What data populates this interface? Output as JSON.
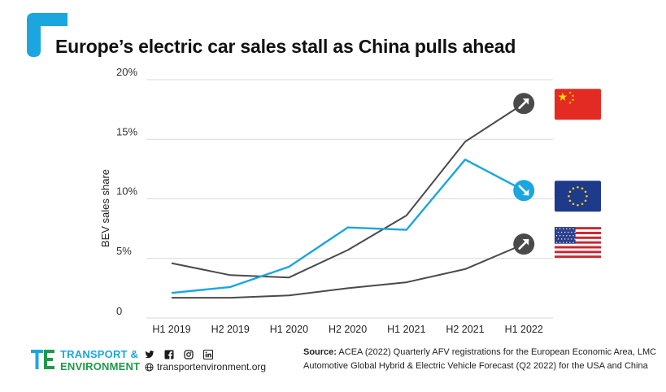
{
  "header": {
    "title": "Europe’s electric car sales stall as China pulls ahead"
  },
  "colors": {
    "china": "#4a4a4a",
    "eu": "#1ba6df",
    "usa": "#4a4a4a",
    "grid": "#d9d9d9",
    "brand_blue": "#1ba6df",
    "brand_green": "#1e9a4a"
  },
  "chart_data": {
    "type": "line",
    "categories": [
      "H1 2019",
      "H2 2019",
      "H1 2020",
      "H2 2020",
      "H1 2021",
      "H2 2021",
      "H1 2022"
    ],
    "ylabel": "BEV sales share",
    "xlabel": "",
    "ylim": [
      0,
      20
    ],
    "yticks": [
      {
        "value": 0,
        "label": "0"
      },
      {
        "value": 5,
        "label": "5%"
      },
      {
        "value": 10,
        "label": "10%"
      },
      {
        "value": 15,
        "label": "15%"
      },
      {
        "value": 20,
        "label": "20%"
      }
    ],
    "grid": true,
    "series": [
      {
        "key": "china",
        "values": [
          4.6,
          3.6,
          3.4,
          5.7,
          8.6,
          14.8,
          18.0
        ],
        "color": "#4a4a4a",
        "trend": "up",
        "flag": "china-flag-icon"
      },
      {
        "key": "eu",
        "values": [
          2.1,
          2.6,
          4.3,
          7.6,
          7.4,
          13.3,
          10.7
        ],
        "color": "#1ba6df",
        "trend": "down",
        "flag": "eu-flag-icon"
      },
      {
        "key": "usa",
        "values": [
          1.7,
          1.7,
          1.9,
          2.5,
          3.0,
          4.1,
          6.2
        ],
        "color": "#4a4a4a",
        "trend": "up",
        "flag": "usa-flag-icon"
      }
    ]
  },
  "footer": {
    "brand_line1": "TRANSPORT &",
    "brand_line2": "ENVIRONMENT",
    "website": "transportenvironment.org",
    "social_icons": [
      "twitter-icon",
      "facebook-icon",
      "instagram-icon",
      "linkedin-icon"
    ],
    "source_label": "Source:",
    "source_text": " ACEA (2022) Quarterly AFV registrations for the European Economic Area, LMC Automotive Global Hybrid & Electric Vehicle Forecast (Q2 2022) for the USA and China"
  }
}
